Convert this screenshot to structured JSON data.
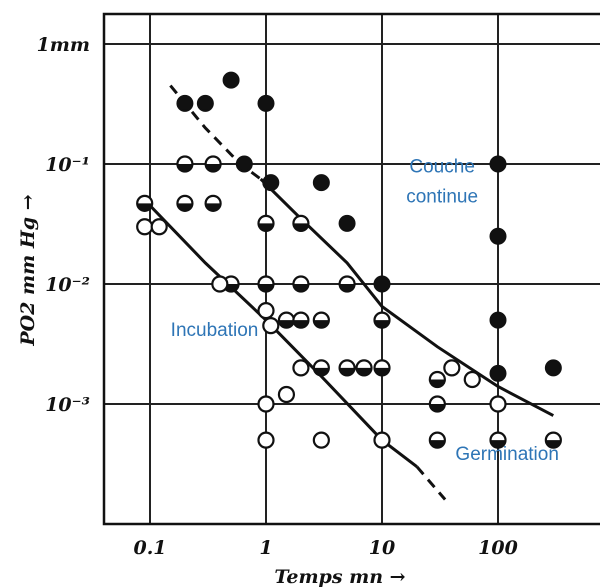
{
  "chart_data": {
    "type": "scatter",
    "xscale": "log",
    "yscale": "log",
    "xlim": [
      0.05,
      1000
    ],
    "ylim": [
      0.00015,
      2
    ],
    "grid": true,
    "xlabel": "Temps mn",
    "ylabel": "PO2 mm Hg",
    "xticks": [
      {
        "value": 0.1,
        "label": "0.1"
      },
      {
        "value": 1,
        "label": "1"
      },
      {
        "value": 10,
        "label": "10"
      },
      {
        "value": 100,
        "label": "100"
      }
    ],
    "yticks": [
      {
        "value": 1,
        "label": "1mm"
      },
      {
        "value": 0.1,
        "label": "10⁻¹"
      },
      {
        "value": 0.01,
        "label": "10⁻²"
      },
      {
        "value": 0.001,
        "label": "10⁻³"
      }
    ],
    "annotations": [
      {
        "text": "Couche",
        "x": 33,
        "y": 0.085
      },
      {
        "text": "continue",
        "x": 33,
        "y": 0.048
      },
      {
        "text": "Incubation",
        "x": 0.36,
        "y": 0.0037
      },
      {
        "text": "Germination",
        "x": 120,
        "y": 0.00034
      }
    ],
    "series": [
      {
        "marker": "filled",
        "points": [
          [
            0.2,
            0.32
          ],
          [
            0.3,
            0.32
          ],
          [
            0.5,
            0.5
          ],
          [
            1,
            0.32
          ],
          [
            0.65,
            0.1
          ],
          [
            1.1,
            0.07
          ],
          [
            3,
            0.07
          ],
          [
            5,
            0.032
          ],
          [
            10,
            0.01
          ],
          [
            100,
            0.1
          ],
          [
            100,
            0.025
          ],
          [
            100,
            0.005
          ],
          [
            100,
            0.0018
          ],
          [
            300,
            0.002
          ]
        ]
      },
      {
        "marker": "half",
        "points": [
          [
            0.09,
            0.047
          ],
          [
            0.2,
            0.1
          ],
          [
            0.35,
            0.1
          ],
          [
            0.2,
            0.047
          ],
          [
            0.35,
            0.047
          ],
          [
            1,
            0.032
          ],
          [
            2,
            0.032
          ],
          [
            0.5,
            0.01
          ],
          [
            1,
            0.01
          ],
          [
            2,
            0.01
          ],
          [
            5,
            0.01
          ],
          [
            1.5,
            0.005
          ],
          [
            2,
            0.005
          ],
          [
            3,
            0.005
          ],
          [
            10,
            0.005
          ],
          [
            3,
            0.002
          ],
          [
            5,
            0.002
          ],
          [
            7,
            0.002
          ],
          [
            10,
            0.002
          ],
          [
            30,
            0.0016
          ],
          [
            30,
            0.001
          ],
          [
            30,
            0.0005
          ],
          [
            100,
            0.0005
          ],
          [
            300,
            0.0005
          ]
        ]
      },
      {
        "marker": "open",
        "points": [
          [
            0.09,
            0.03
          ],
          [
            0.12,
            0.03
          ],
          [
            0.4,
            0.01
          ],
          [
            1,
            0.006
          ],
          [
            1.1,
            0.0045
          ],
          [
            2,
            0.002
          ],
          [
            1,
            0.001
          ],
          [
            1.5,
            0.0012
          ],
          [
            1,
            0.0005
          ],
          [
            3,
            0.0005
          ],
          [
            10,
            0.0005
          ],
          [
            40,
            0.002
          ],
          [
            60,
            0.0016
          ],
          [
            100,
            0.001
          ]
        ]
      }
    ],
    "curves": [
      {
        "style": "solid",
        "points": [
          [
            0.09,
            0.05
          ],
          [
            0.3,
            0.015
          ],
          [
            1,
            0.005
          ],
          [
            3,
            0.0017
          ],
          [
            10,
            0.0005
          ],
          [
            20,
            0.0003
          ]
        ]
      },
      {
        "style": "dashed",
        "points": [
          [
            20,
            0.0003
          ],
          [
            35,
            0.00016
          ]
        ]
      },
      {
        "style": "dashed",
        "points": [
          [
            0.15,
            0.45
          ],
          [
            0.3,
            0.2
          ],
          [
            0.6,
            0.1
          ],
          [
            0.9,
            0.075
          ]
        ]
      },
      {
        "style": "solid",
        "points": [
          [
            0.9,
            0.075
          ],
          [
            2,
            0.035
          ],
          [
            5,
            0.015
          ],
          [
            10,
            0.0065
          ],
          [
            30,
            0.003
          ],
          [
            100,
            0.0014
          ],
          [
            300,
            0.0008
          ]
        ]
      }
    ]
  }
}
